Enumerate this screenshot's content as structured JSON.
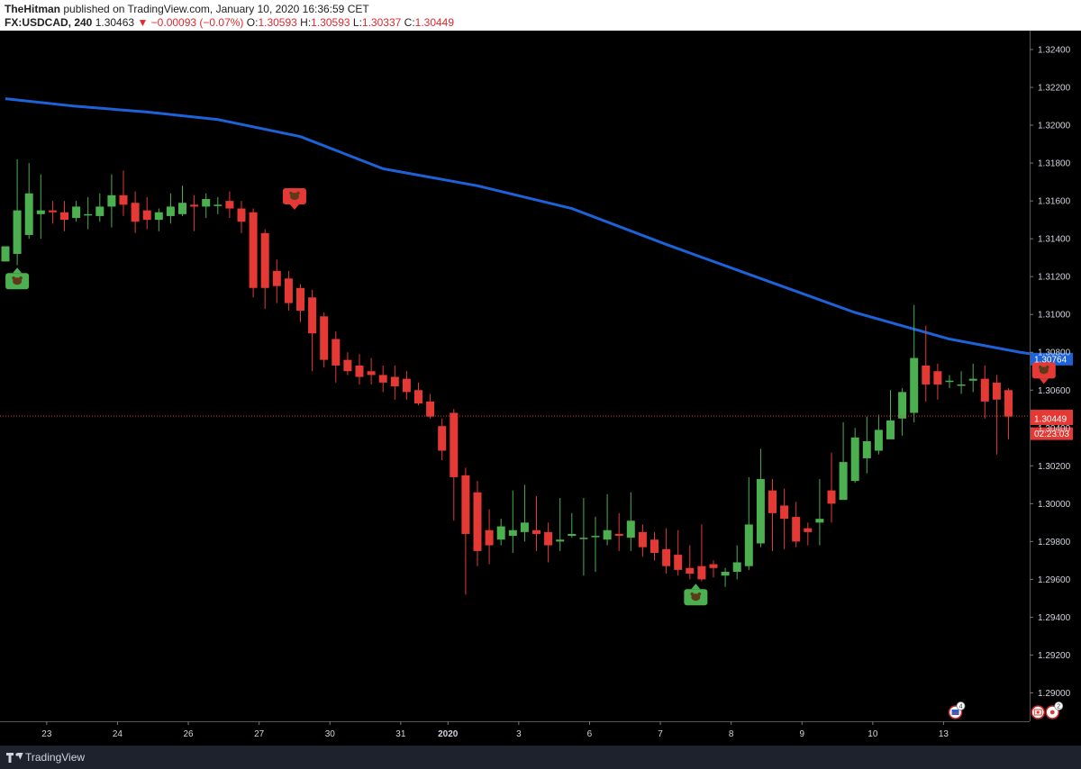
{
  "header": {
    "author": "TheHitman",
    "published": "published on TradingView.com, January 10, 2020 16:36:59 CET",
    "symbol": "FX:USDCAD, 240",
    "last": "1.30463",
    "change": "−0.00093 (−0.07%)",
    "o_label": "O:",
    "o": "1.30593",
    "h_label": "H:",
    "h": "1.30593",
    "l_label": "L:",
    "l": "1.30337",
    "c_label": "C:",
    "c": "1.30449"
  },
  "footer": {
    "brand": "TradingView"
  },
  "colors": {
    "up": "#4caf50",
    "down": "#e53935",
    "ma": "#1e62d8",
    "bg": "#000000"
  },
  "chart_data": {
    "type": "candlestick",
    "y_ticks": [
      "1.32400",
      "1.32200",
      "1.32000",
      "1.31800",
      "1.31600",
      "1.31400",
      "1.31200",
      "1.31000",
      "1.30800",
      "1.30600",
      "1.30400",
      "1.30200",
      "1.30000",
      "1.29800",
      "1.29600",
      "1.29400",
      "1.29200",
      "1.29000"
    ],
    "ylim": [
      1.2885,
      1.325
    ],
    "x_ticks": [
      {
        "label": "23",
        "i": 3.5
      },
      {
        "label": "24",
        "i": 9.5
      },
      {
        "label": "26",
        "i": 15.5
      },
      {
        "label": "27",
        "i": 21.5
      },
      {
        "label": "30",
        "i": 27.5
      },
      {
        "label": "31",
        "i": 33.5
      },
      {
        "label": "2020",
        "i": 37.5
      },
      {
        "label": "3",
        "i": 43.5
      },
      {
        "label": "6",
        "i": 49.5
      },
      {
        "label": "7",
        "i": 55.5
      },
      {
        "label": "8",
        "i": 61.5
      },
      {
        "label": "9",
        "i": 67.5
      },
      {
        "label": "10",
        "i": 73.5
      },
      {
        "label": "13",
        "i": 79.5
      }
    ],
    "candles": [
      [
        1.3128,
        1.3136,
        1.3128,
        1.3136
      ],
      [
        1.3132,
        1.3182,
        1.3126,
        1.3155
      ],
      [
        1.3142,
        1.318,
        1.314,
        1.3164
      ],
      [
        1.3153,
        1.3174,
        1.314,
        1.3155
      ],
      [
        1.3155,
        1.316,
        1.3148,
        1.3154
      ],
      [
        1.3154,
        1.316,
        1.3144,
        1.315
      ],
      [
        1.3151,
        1.316,
        1.3149,
        1.3157
      ],
      [
        1.3153,
        1.3162,
        1.3145,
        1.3153
      ],
      [
        1.3152,
        1.3164,
        1.3149,
        1.3157
      ],
      [
        1.3157,
        1.3174,
        1.3146,
        1.3163
      ],
      [
        1.3163,
        1.3176,
        1.3152,
        1.3158
      ],
      [
        1.3159,
        1.3165,
        1.3143,
        1.3149
      ],
      [
        1.3155,
        1.3162,
        1.3145,
        1.315
      ],
      [
        1.315,
        1.3156,
        1.3144,
        1.3154
      ],
      [
        1.3152,
        1.3164,
        1.3148,
        1.3157
      ],
      [
        1.3153,
        1.3168,
        1.3152,
        1.3159
      ],
      [
        1.3158,
        1.3163,
        1.3144,
        1.3157
      ],
      [
        1.3157,
        1.3164,
        1.3151,
        1.3161
      ],
      [
        1.3158,
        1.3162,
        1.3153,
        1.3158
      ],
      [
        1.316,
        1.3165,
        1.3151,
        1.3156
      ],
      [
        1.3156,
        1.316,
        1.3143,
        1.3149
      ],
      [
        1.3154,
        1.3156,
        1.3109,
        1.3114
      ],
      [
        1.3143,
        1.3145,
        1.3103,
        1.3114
      ],
      [
        1.3123,
        1.3129,
        1.3106,
        1.3115
      ],
      [
        1.3119,
        1.3123,
        1.3102,
        1.3106
      ],
      [
        1.3114,
        1.3116,
        1.3096,
        1.3102
      ],
      [
        1.3109,
        1.3113,
        1.307,
        1.309
      ],
      [
        1.3099,
        1.3101,
        1.3072,
        1.3076
      ],
      [
        1.3087,
        1.3091,
        1.3064,
        1.3073
      ],
      [
        1.3076,
        1.308,
        1.3068,
        1.307
      ],
      [
        1.3073,
        1.3079,
        1.3063,
        1.3067
      ],
      [
        1.307,
        1.3077,
        1.3063,
        1.3068
      ],
      [
        1.3068,
        1.3073,
        1.3059,
        1.3064
      ],
      [
        1.3067,
        1.3073,
        1.3055,
        1.3062
      ],
      [
        1.3066,
        1.307,
        1.3055,
        1.3059
      ],
      [
        1.306,
        1.3064,
        1.3052,
        1.3053
      ],
      [
        1.3054,
        1.3058,
        1.3045,
        1.3046
      ],
      [
        1.3041,
        1.3045,
        1.3023,
        1.3028
      ],
      [
        1.3048,
        1.305,
        1.2991,
        1.3014
      ],
      [
        1.3015,
        1.3019,
        1.2952,
        1.2984
      ],
      [
        1.3006,
        1.3012,
        1.2967,
        1.2975
      ],
      [
        1.2986,
        1.2997,
        1.2968,
        1.2978
      ],
      [
        1.2981,
        1.2992,
        1.2978,
        1.2988
      ],
      [
        1.2983,
        1.3007,
        1.2974,
        1.2986
      ],
      [
        1.2985,
        1.301,
        1.298,
        1.299
      ],
      [
        1.2986,
        1.3004,
        1.2975,
        1.2984
      ],
      [
        1.2985,
        1.299,
        1.2969,
        1.2978
      ],
      [
        1.298,
        1.3003,
        1.2975,
        1.2981
      ],
      [
        1.2983,
        1.2995,
        1.2982,
        1.2984
      ],
      [
        1.2982,
        1.3003,
        1.2962,
        1.2982
      ],
      [
        1.2983,
        1.2993,
        1.2964,
        1.2983
      ],
      [
        1.2981,
        1.3005,
        1.2978,
        1.2986
      ],
      [
        1.2984,
        1.2995,
        1.2975,
        1.2983
      ],
      [
        1.2982,
        1.3006,
        1.2975,
        1.2991
      ],
      [
        1.2985,
        1.2989,
        1.2972,
        1.2977
      ],
      [
        1.2981,
        1.2985,
        1.297,
        1.2974
      ],
      [
        1.2976,
        1.2987,
        1.2963,
        1.2967
      ],
      [
        1.2973,
        1.2986,
        1.2962,
        1.2965
      ],
      [
        1.2966,
        1.2978,
        1.296,
        1.2963
      ],
      [
        1.2967,
        1.2989,
        1.2959,
        1.296
      ],
      [
        1.2968,
        1.297,
        1.2961,
        1.2966
      ],
      [
        1.2962,
        1.2966,
        1.2956,
        1.2964
      ],
      [
        1.2964,
        1.2978,
        1.296,
        1.2969
      ],
      [
        1.2967,
        1.3014,
        1.2965,
        1.2989
      ],
      [
        1.2979,
        1.3029,
        1.2977,
        1.3013
      ],
      [
        1.3007,
        1.3013,
        1.2975,
        1.2995
      ],
      [
        1.2999,
        1.3008,
        1.2976,
        1.2992
      ],
      [
        1.2993,
        1.3001,
        1.2977,
        1.298
      ],
      [
        1.2987,
        1.299,
        1.2978,
        1.2985
      ],
      [
        1.299,
        1.3013,
        1.2978,
        1.2992
      ],
      [
        1.3007,
        1.3027,
        1.299,
        1.3
      ],
      [
        1.3002,
        1.3043,
        1.3002,
        1.3022
      ],
      [
        1.3012,
        1.304,
        1.3011,
        1.3035
      ],
      [
        1.3024,
        1.3046,
        1.3016,
        1.3033
      ],
      [
        1.3028,
        1.3047,
        1.3026,
        1.3039
      ],
      [
        1.3034,
        1.306,
        1.3034,
        1.3044
      ],
      [
        1.3045,
        1.3061,
        1.3036,
        1.3059
      ],
      [
        1.3048,
        1.3105,
        1.3043,
        1.3077
      ],
      [
        1.3073,
        1.3094,
        1.3054,
        1.3063
      ],
      [
        1.307,
        1.3074,
        1.3055,
        1.3063
      ],
      [
        1.3065,
        1.3068,
        1.3061,
        1.3065
      ],
      [
        1.3063,
        1.307,
        1.3058,
        1.3063
      ],
      [
        1.3065,
        1.3074,
        1.3059,
        1.3066
      ],
      [
        1.3066,
        1.3073,
        1.3045,
        1.3054
      ],
      [
        1.3064,
        1.3068,
        1.3026,
        1.3055
      ],
      [
        1.306,
        1.3061,
        1.3034,
        1.3046
      ]
    ],
    "ma_series": [
      [
        0,
        1.3214
      ],
      [
        6,
        1.321
      ],
      [
        12,
        1.3207
      ],
      [
        18,
        1.3203
      ],
      [
        25,
        1.3194
      ],
      [
        32,
        1.3177
      ],
      [
        40,
        1.3168
      ],
      [
        48,
        1.3156
      ],
      [
        56,
        1.3137
      ],
      [
        64,
        1.3119
      ],
      [
        72,
        1.3101
      ],
      [
        80,
        1.3087
      ],
      [
        86,
        1.308
      ],
      [
        90,
        1.30764
      ]
    ],
    "price_labels": [
      {
        "text": "1.30764",
        "value": 1.30764,
        "color": "#1e62d8"
      },
      {
        "text": "1.30463",
        "value": 1.30463,
        "color": "#e53935"
      },
      {
        "text": "1.30449",
        "value": 1.30449,
        "color": "#e53935"
      },
      {
        "text": "02:23:03",
        "value": 1.3037,
        "color": "#e53935"
      }
    ],
    "current_price": 1.30463,
    "markers": [
      {
        "type": "bear",
        "i": 24.5,
        "value": 1.3161,
        "color": "#e53935"
      },
      {
        "type": "bull",
        "i": 1,
        "value": 1.3119,
        "color": "#4caf50"
      },
      {
        "type": "bull",
        "i": 58.5,
        "value": 1.2952,
        "color": "#4caf50"
      },
      {
        "type": "bear",
        "i": 88,
        "value": 1.3069,
        "color": "#e53935"
      }
    ],
    "event_icons": [
      {
        "i": 80.5,
        "count": "4",
        "flag": "US"
      },
      {
        "i": 87.5,
        "count": "2",
        "flag": "CA"
      }
    ]
  }
}
